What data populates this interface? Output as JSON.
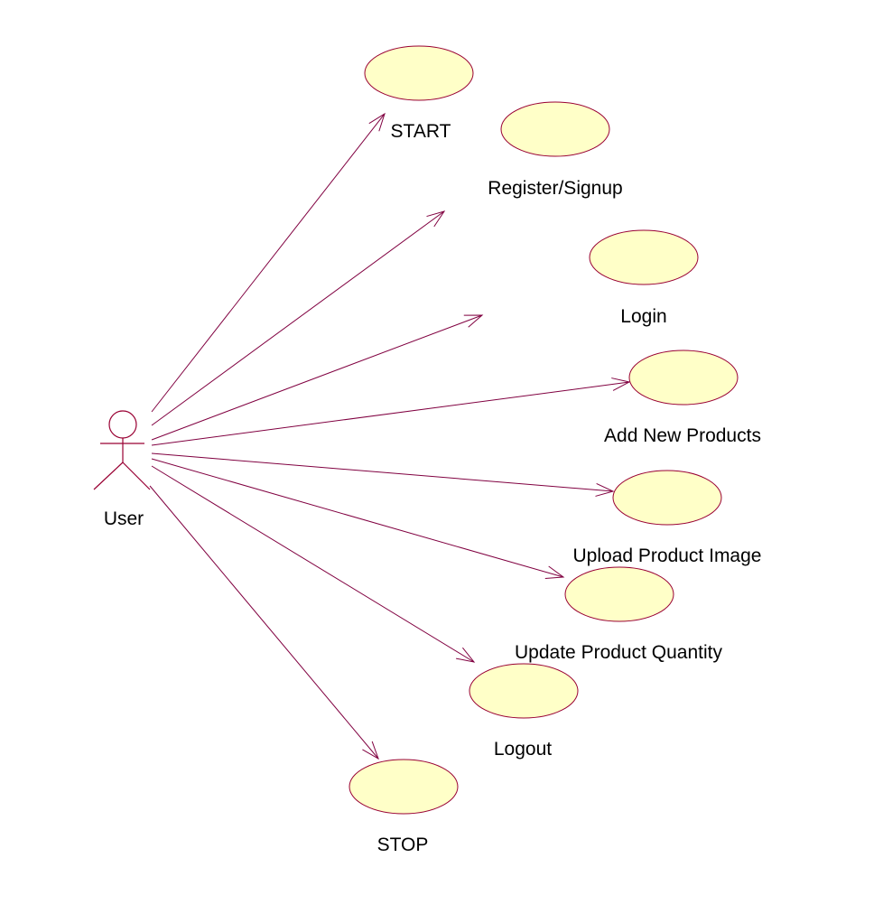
{
  "actor": {
    "label": "User"
  },
  "use_cases": [
    {
      "id": "start",
      "label": "START"
    },
    {
      "id": "register",
      "label": "Register/Signup"
    },
    {
      "id": "login",
      "label": "Login"
    },
    {
      "id": "add-products",
      "label": "Add New Products"
    },
    {
      "id": "upload-image",
      "label": "Upload Product Image"
    },
    {
      "id": "update-quantity",
      "label": "Update Product Quantity"
    },
    {
      "id": "logout",
      "label": "Logout"
    },
    {
      "id": "stop",
      "label": "STOP"
    }
  ],
  "colors": {
    "ellipse_fill": "#ffffc8",
    "ellipse_stroke": "#990033",
    "line": "#800040"
  }
}
